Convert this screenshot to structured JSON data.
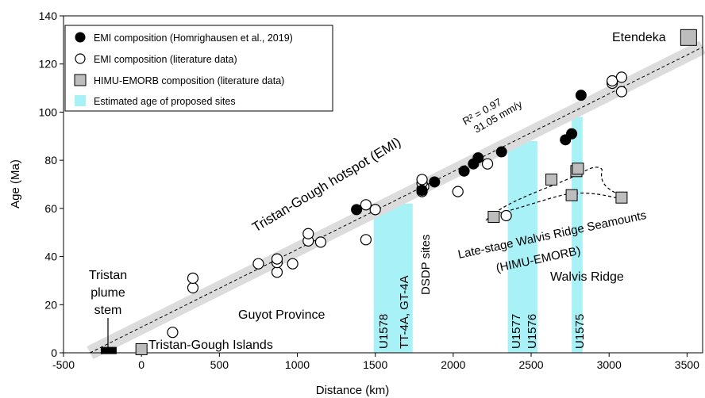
{
  "chart_data": {
    "type": "scatter",
    "xlabel": "Distance (km)",
    "ylabel": "Age (Ma)",
    "xlim": [
      -500,
      3600
    ],
    "ylim": [
      0,
      140
    ],
    "x_ticks": [
      -500,
      0,
      500,
      1000,
      1500,
      2000,
      2500,
      3000,
      3500
    ],
    "y_ticks": [
      0,
      20,
      40,
      60,
      80,
      100,
      120,
      140
    ],
    "grid": false,
    "legend_position": "top-left",
    "legend": [
      {
        "label": "EMI composition (Homrighausen et al., 2019)",
        "marker": "filled-circle"
      },
      {
        "label": "EMI composition (literature data)",
        "marker": "open-circle"
      },
      {
        "label": "HIMU-EMORB composition (literature data)",
        "marker": "gray-square"
      },
      {
        "label": "Estimated age of proposed sites",
        "marker": "cyan-rect"
      }
    ],
    "regression": {
      "r2_label": "R² = 0.97",
      "rate_label": "31.05 mm/y",
      "line": [
        [
          -330,
          0
        ],
        [
          3600,
          127
        ]
      ]
    },
    "series": [
      {
        "name": "EMI composition (Homrighausen et al., 2019)",
        "points": [
          [
            1380,
            59.5
          ],
          [
            1800,
            67.5
          ],
          [
            1880,
            71
          ],
          [
            2070,
            75.5
          ],
          [
            2130,
            78.5
          ],
          [
            2160,
            81
          ],
          [
            2310,
            83.5
          ],
          [
            2720,
            88.5
          ],
          [
            2760,
            91
          ],
          [
            2820,
            107
          ]
        ]
      },
      {
        "name": "EMI composition (literature data)",
        "points": [
          [
            200,
            8.5
          ],
          [
            330,
            27
          ],
          [
            330,
            31
          ],
          [
            750,
            37
          ],
          [
            870,
            33.5
          ],
          [
            870,
            37.5
          ],
          [
            870,
            39
          ],
          [
            970,
            37
          ],
          [
            1070,
            46.5
          ],
          [
            1070,
            49.5
          ],
          [
            1150,
            46
          ],
          [
            1440,
            61.5
          ],
          [
            1440,
            47
          ],
          [
            1500,
            59.5
          ],
          [
            1800,
            67
          ],
          [
            1800,
            68
          ],
          [
            1810,
            69
          ],
          [
            1800,
            70.5
          ],
          [
            1800,
            72
          ],
          [
            2030,
            67
          ],
          [
            2220,
            78.5
          ],
          [
            2340,
            57
          ],
          [
            3020,
            112
          ],
          [
            3020,
            113
          ],
          [
            3080,
            114.5
          ],
          [
            3080,
            108.5
          ]
        ]
      },
      {
        "name": "HIMU-EMORB composition (literature data)",
        "points": [
          [
            0,
            1.5
          ],
          [
            2260,
            56.5
          ],
          [
            2630,
            72
          ],
          [
            2760,
            65.5
          ],
          [
            2790,
            75.5
          ],
          [
            2800,
            76.5
          ],
          [
            3080,
            64.5
          ],
          [
            3510,
            131
          ]
        ]
      }
    ],
    "tristan_plume_stem_marker": [
      -210,
      0.8
    ],
    "cyan_bands": [
      {
        "x0": 1490,
        "x1": 1740,
        "ytop": 62
      },
      {
        "x0": 2350,
        "x1": 2540,
        "ytop": 88
      },
      {
        "x0": 2760,
        "x1": 2830,
        "ytop": 98
      }
    ],
    "annotations": {
      "etendeka": "Etendeka",
      "hotspot": "Tristan-Gough hotspot (EMI)",
      "tristan_plume_stem": [
        "Tristan",
        "plume",
        "stem"
      ],
      "tristan_gough_islands": "Tristan-Gough Islands",
      "guyot_province": "Guyot Province",
      "dsdp_sites": "DSDP sites",
      "late_stage": "Late-stage Walvis Ridge Seamounts",
      "himu_emorb": "(HIMU-EMORB)",
      "walvis_ridge": "Walvis Ridge",
      "u1578": "U1578",
      "tt4a": "TT-4A, GT-4A",
      "u1577": "U1577",
      "u1576": "U1576",
      "u1575": "U1575"
    }
  }
}
